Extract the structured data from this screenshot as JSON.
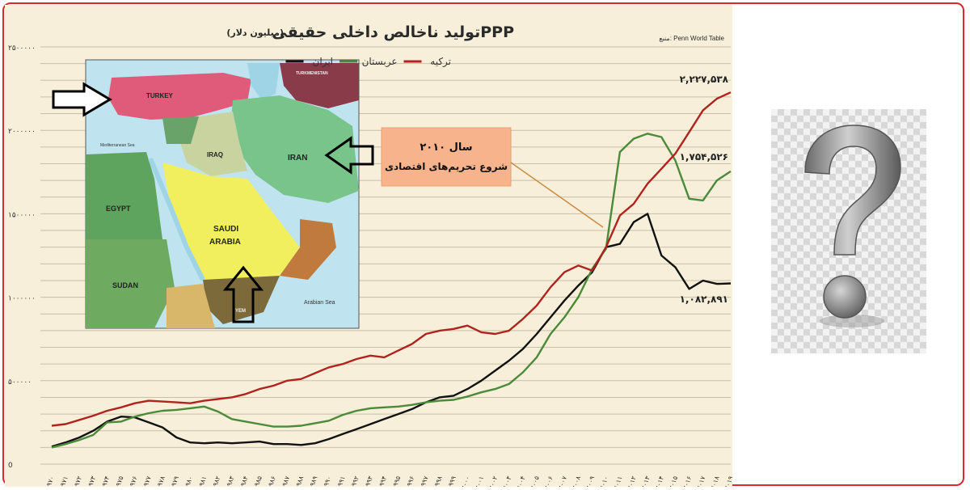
{
  "header": {
    "title": "تولید ناخالص داخلی حقیقیPPP",
    "unit_note": "(میلیون دلار)",
    "source": "منبع: Penn World Table"
  },
  "annotation": {
    "line1": "سال ۲۰۱۰",
    "line2": "شروع تحریم‌های اقتصادی"
  },
  "end_labels": {
    "turkey": "۲,۲۲۷,۵۳۸",
    "saudi": "۱,۷۵۴,۵۲۶",
    "iran": "۱,۰۸۲,۸۹۱"
  },
  "map_labels": {
    "turkey": "TURKEY",
    "iran": "IRAN",
    "iraq": "IRAQ",
    "saudi": "SAUDI",
    "arabia": "ARABIA",
    "egypt": "EGYPT",
    "sudan": "SUDAN",
    "turkmenistan": "TURKMENISTAN",
    "arabian_sea": "Arabian Sea",
    "mediterranean": "Mediterranean Sea",
    "yemen": "YEM"
  },
  "colors": {
    "iran": "#111111",
    "saudi": "#4a8a3a",
    "turkey": "#b0231e",
    "frame": "#d9262f",
    "panel_bg": "#f7efd9"
  },
  "chart_data": {
    "type": "line",
    "title": "تولید ناخالص داخلی حقیقیPPP",
    "ylabel": "",
    "xlabel": "",
    "ylim": [
      0,
      2500000
    ],
    "y_tick_labels": [
      "0",
      "۵۰۰۰۰۰",
      "۱۰۰۰۰۰۰",
      "۱۵۰۰۰۰۰",
      "۲۰۰۰۰۰۰",
      "۲۵۰۰۰۰۰"
    ],
    "y_tick_values": [
      0,
      500000,
      1000000,
      1500000,
      2000000,
      2500000
    ],
    "grid": true,
    "legend_position": "top-center",
    "x": [
      "۱۹۷۰",
      "۱۹۷۱",
      "۱۹۷۲",
      "۱۹۷۳",
      "۱۹۷۴",
      "۱۹۷۵",
      "۱۹۷۶",
      "۱۹۷۷",
      "۱۹۷۸",
      "۱۹۷۹",
      "۱۹۸۰",
      "۱۹۸۱",
      "۱۹۸۲",
      "۱۹۸۳",
      "۱۹۸۴",
      "۱۹۸۵",
      "۱۹۸۶",
      "۱۹۸۷",
      "۱۹۸۸",
      "۱۹۸۹",
      "۱۹۹۰",
      "۱۹۹۱",
      "۱۹۹۲",
      "۱۹۹۳",
      "۱۹۹۴",
      "۱۹۹۵",
      "۱۹۹۶",
      "۱۹۹۷",
      "۱۹۹۸",
      "۱۹۹۹",
      "۲۰۰۰",
      "۲۰۰۱",
      "۲۰۰۲",
      "۲۰۰۳",
      "۲۰۰۴",
      "۲۰۰۵",
      "۲۰۰۶",
      "۲۰۰۷",
      "۲۰۰۸",
      "۲۰۰۹",
      "۲۰۱۰",
      "۲۰۱۱",
      "۲۰۱۲",
      "۲۰۱۳",
      "۲۰۱۴",
      "۲۰۱۵",
      "۲۰۱۶",
      "۲۰۱۷",
      "۲۰۱۸",
      "۲۰۱۹"
    ],
    "series": [
      {
        "name": "ایران",
        "color_key": "iran",
        "values": [
          105000,
          130000,
          160000,
          200000,
          255000,
          285000,
          280000,
          250000,
          220000,
          160000,
          130000,
          125000,
          130000,
          125000,
          130000,
          135000,
          120000,
          120000,
          115000,
          125000,
          150000,
          180000,
          210000,
          240000,
          270000,
          300000,
          330000,
          370000,
          400000,
          410000,
          450000,
          500000,
          560000,
          620000,
          690000,
          780000,
          880000,
          980000,
          1070000,
          1150000,
          1300000,
          1320000,
          1450000,
          1500000,
          1250000,
          1180000,
          1050000,
          1100000,
          1080000,
          1082891
        ]
      },
      {
        "name": "عربستان",
        "color_key": "saudi",
        "values": [
          100000,
          120000,
          145000,
          175000,
          250000,
          255000,
          285000,
          305000,
          320000,
          325000,
          335000,
          345000,
          315000,
          270000,
          255000,
          240000,
          225000,
          225000,
          230000,
          245000,
          260000,
          295000,
          320000,
          335000,
          340000,
          345000,
          355000,
          370000,
          380000,
          385000,
          405000,
          430000,
          450000,
          480000,
          550000,
          640000,
          780000,
          880000,
          1000000,
          1170000,
          1290000,
          1870000,
          1950000,
          1980000,
          1960000,
          1820000,
          1590000,
          1580000,
          1700000,
          1754526
        ]
      },
      {
        "name": "ترکیه",
        "color_key": "turkey",
        "values": [
          230000,
          240000,
          265000,
          290000,
          320000,
          340000,
          365000,
          380000,
          375000,
          370000,
          365000,
          380000,
          390000,
          400000,
          420000,
          450000,
          470000,
          500000,
          510000,
          545000,
          580000,
          600000,
          630000,
          650000,
          640000,
          680000,
          720000,
          780000,
          800000,
          810000,
          830000,
          790000,
          780000,
          800000,
          870000,
          950000,
          1060000,
          1150000,
          1190000,
          1160000,
          1300000,
          1490000,
          1560000,
          1680000,
          1770000,
          1860000,
          1990000,
          2120000,
          2190000,
          2227538
        ]
      }
    ]
  }
}
